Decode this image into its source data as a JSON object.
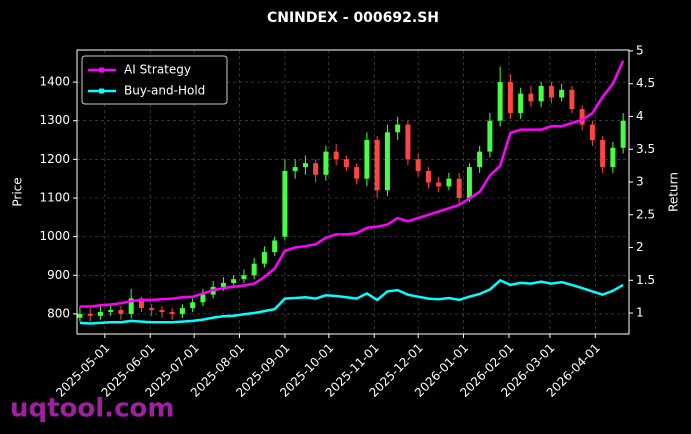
{
  "chart_data": {
    "type": "candlestick",
    "title": "CNINDEX - 000692.SH",
    "y_label": "Price",
    "y2_label": "Return",
    "watermark": "uqtool.com",
    "up_color": "#44ff44",
    "down_color": "#ff4444",
    "grid": true,
    "legend": "upper left",
    "x": [
      "2025-04-14",
      "2025-04-21",
      "2025-04-28",
      "2025-05-05",
      "2025-05-12",
      "2025-05-19",
      "2025-05-26",
      "2025-06-02",
      "2025-06-09",
      "2025-06-16",
      "2025-06-23",
      "2025-06-30",
      "2025-07-07",
      "2025-07-14",
      "2025-07-21",
      "2025-07-28",
      "2025-08-04",
      "2025-08-11",
      "2025-08-18",
      "2025-08-25",
      "2025-09-01",
      "2025-09-08",
      "2025-09-15",
      "2025-09-22",
      "2025-09-29",
      "2025-10-06",
      "2025-10-13",
      "2025-10-20",
      "2025-10-27",
      "2025-11-03",
      "2025-11-10",
      "2025-11-17",
      "2025-11-24",
      "2025-12-01",
      "2025-12-08",
      "2025-12-15",
      "2025-12-22",
      "2025-12-29",
      "2026-01-05",
      "2026-01-12",
      "2026-01-19",
      "2026-01-26",
      "2026-02-02",
      "2026-02-09",
      "2026-02-16",
      "2026-02-23",
      "2026-03-02",
      "2026-03-09",
      "2026-03-16",
      "2026-03-23",
      "2026-03-30",
      "2026-04-06",
      "2026-04-13",
      "2026-04-20"
    ],
    "open": [
      790,
      800,
      795,
      805,
      810,
      800,
      840,
      815,
      810,
      805,
      800,
      815,
      830,
      850,
      870,
      880,
      890,
      900,
      930,
      960,
      1000,
      1170,
      1180,
      1190,
      1160,
      1220,
      1200,
      1180,
      1150,
      1250,
      1120,
      1270,
      1290,
      1200,
      1170,
      1140,
      1130,
      1150,
      1100,
      1180,
      1220,
      1300,
      1400,
      1320,
      1370,
      1350,
      1390,
      1360,
      1380,
      1330,
      1290,
      1250,
      1180,
      1230
    ],
    "high": [
      820,
      815,
      820,
      825,
      820,
      865,
      845,
      825,
      820,
      815,
      825,
      840,
      865,
      885,
      895,
      900,
      915,
      945,
      975,
      1000,
      1200,
      1200,
      1210,
      1200,
      1235,
      1240,
      1210,
      1190,
      1270,
      1260,
      1290,
      1310,
      1300,
      1215,
      1180,
      1155,
      1165,
      1165,
      1190,
      1235,
      1320,
      1440,
      1420,
      1385,
      1390,
      1400,
      1400,
      1395,
      1390,
      1340,
      1300,
      1260,
      1245,
      1320
    ],
    "low": [
      780,
      780,
      785,
      795,
      785,
      790,
      805,
      795,
      790,
      785,
      790,
      805,
      820,
      840,
      860,
      870,
      880,
      890,
      920,
      950,
      990,
      1150,
      1160,
      1140,
      1145,
      1185,
      1170,
      1135,
      1130,
      1100,
      1105,
      1250,
      1185,
      1155,
      1125,
      1115,
      1120,
      1085,
      1090,
      1165,
      1205,
      1285,
      1305,
      1305,
      1335,
      1335,
      1345,
      1350,
      1320,
      1275,
      1235,
      1165,
      1165,
      1215
    ],
    "close": [
      800,
      795,
      805,
      810,
      800,
      840,
      815,
      810,
      805,
      800,
      815,
      830,
      850,
      870,
      880,
      890,
      900,
      930,
      960,
      990,
      1170,
      1180,
      1190,
      1160,
      1220,
      1200,
      1180,
      1150,
      1250,
      1120,
      1270,
      1290,
      1200,
      1170,
      1140,
      1130,
      1150,
      1100,
      1180,
      1220,
      1300,
      1400,
      1320,
      1370,
      1350,
      1390,
      1360,
      1380,
      1330,
      1290,
      1250,
      1180,
      1230,
      1300
    ],
    "series": [
      {
        "name": "AI Strategy",
        "color": "#ff00ff",
        "axis": "y2",
        "values": [
          1.1,
          1.1,
          1.12,
          1.13,
          1.15,
          1.18,
          1.2,
          1.2,
          1.21,
          1.22,
          1.24,
          1.25,
          1.3,
          1.35,
          1.38,
          1.4,
          1.42,
          1.45,
          1.55,
          1.68,
          1.95,
          2.0,
          2.02,
          2.05,
          2.15,
          2.2,
          2.2,
          2.22,
          2.3,
          2.32,
          2.35,
          2.45,
          2.4,
          2.45,
          2.5,
          2.55,
          2.6,
          2.65,
          2.75,
          2.85,
          3.1,
          3.25,
          3.75,
          3.8,
          3.8,
          3.8,
          3.85,
          3.85,
          3.9,
          3.95,
          4.05,
          4.3,
          4.5,
          4.85
        ]
      },
      {
        "name": "Buy-and-Hold",
        "color": "#00ffff",
        "axis": "y2",
        "values": [
          0.85,
          0.84,
          0.85,
          0.86,
          0.86,
          0.88,
          0.87,
          0.86,
          0.86,
          0.86,
          0.87,
          0.88,
          0.9,
          0.93,
          0.95,
          0.96,
          0.98,
          1.0,
          1.03,
          1.06,
          1.22,
          1.23,
          1.24,
          1.22,
          1.27,
          1.26,
          1.24,
          1.22,
          1.3,
          1.2,
          1.33,
          1.35,
          1.28,
          1.25,
          1.22,
          1.21,
          1.23,
          1.2,
          1.25,
          1.29,
          1.36,
          1.5,
          1.43,
          1.46,
          1.45,
          1.48,
          1.45,
          1.47,
          1.43,
          1.38,
          1.33,
          1.28,
          1.34,
          1.43
        ]
      }
    ],
    "xlim": [
      "2025-04-12",
      "2026-04-24"
    ],
    "xticks": [
      "2025-05-01",
      "2025-06-01",
      "2025-07-01",
      "2025-08-01",
      "2025-09-01",
      "2025-10-01",
      "2025-11-01",
      "2025-12-01",
      "2026-01-01",
      "2026-02-01",
      "2026-03-01",
      "2026-04-01"
    ],
    "ylim": [
      748,
      1483
    ],
    "yticks": [
      800,
      900,
      1000,
      1100,
      1200,
      1300,
      1400
    ],
    "y2lim": [
      0.68,
      5.015
    ],
    "y2ticks": [
      1.0,
      1.5,
      2.0,
      2.5,
      3.0,
      3.5,
      4.0,
      4.5,
      5.0
    ]
  }
}
